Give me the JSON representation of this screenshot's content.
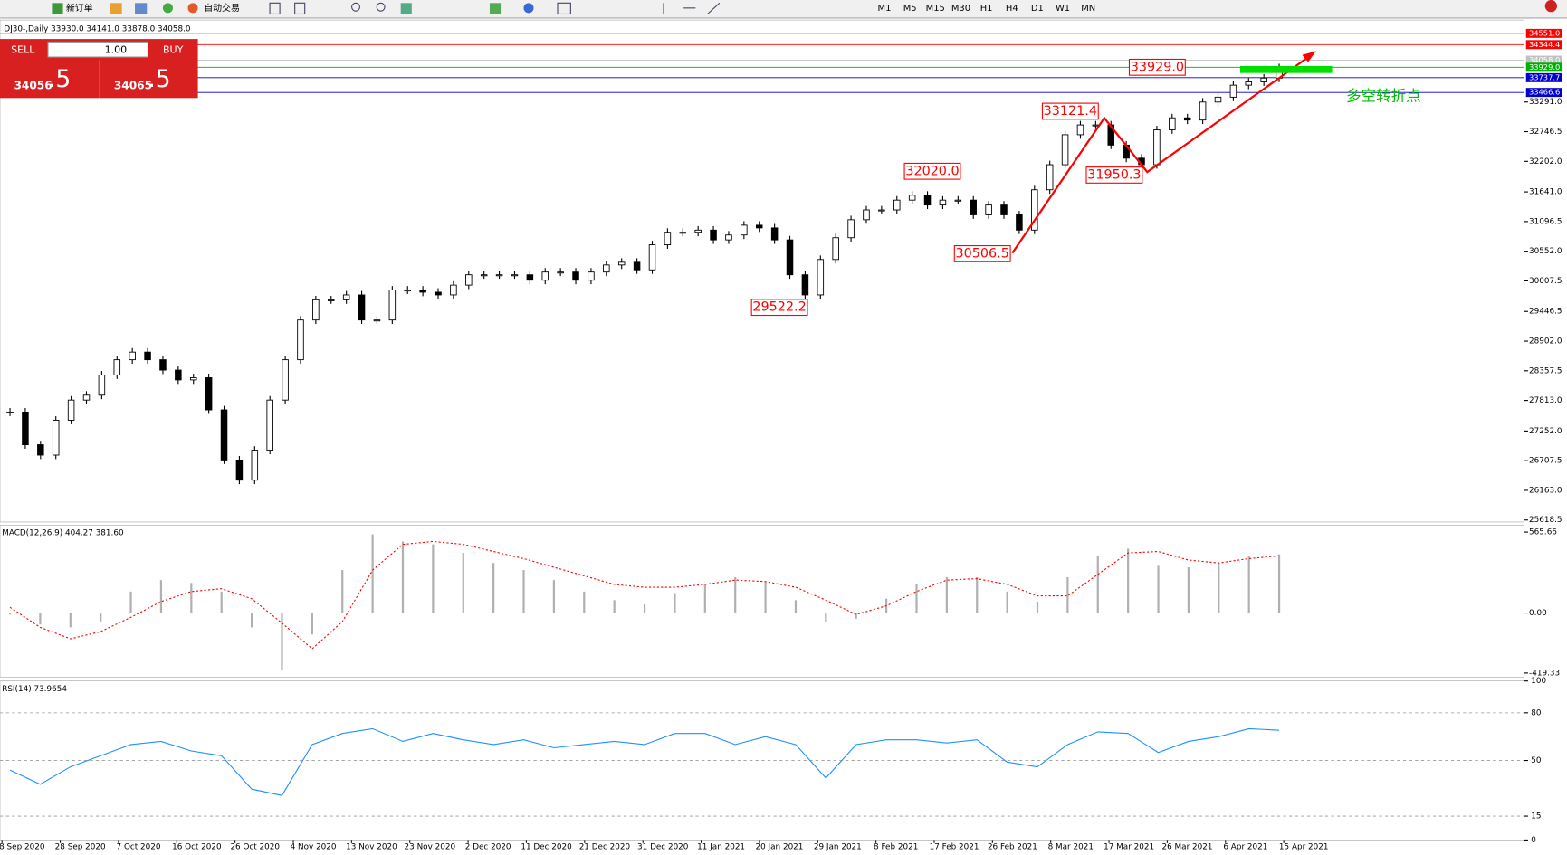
{
  "toolbar": {
    "buttons": [
      "新订单",
      "自动交易"
    ],
    "timeframes": [
      "M1",
      "M5",
      "M15",
      "M30",
      "H1",
      "H4",
      "D1",
      "W1",
      "MN"
    ]
  },
  "trade_panel": {
    "sell": "SELL",
    "lots": "1.00",
    "buy": "BUY",
    "bid_main": "34056",
    "bid_frac": ".5",
    "ask_main": "34065",
    "ask_frac": ".5"
  },
  "note": "多空转折点",
  "chart_data": [
    {
      "type": "candlestick",
      "title": "DJ30-,Daily  33930.0 34141.0 33878.0 34058.0",
      "values": [
        27600,
        27000,
        26810,
        27450,
        27820,
        27910,
        28280,
        28560,
        28700,
        28560,
        28370,
        28190,
        28230,
        27640,
        26720,
        26350,
        26900,
        27820,
        28560,
        29290,
        29660,
        29660,
        29750,
        29290,
        29290,
        29840,
        29840,
        29800,
        29750,
        29930,
        30120,
        30120,
        30120,
        30120,
        30020,
        30170,
        30170,
        30020,
        30170,
        30300,
        30350,
        30210,
        30670,
        30900,
        30900,
        30940,
        30760,
        30850,
        31030,
        30980,
        30760,
        30120,
        29750,
        30400,
        30800,
        31130,
        31310,
        31310,
        31490,
        31580,
        31400,
        31490,
        31490,
        31220,
        31400,
        31220,
        30940,
        31680,
        32140,
        32690,
        32870,
        32870,
        32500,
        32260,
        32140,
        32780,
        33000,
        32960,
        33290,
        33380,
        33600,
        33660,
        33730,
        33920
      ],
      "ylim": [
        25582,
        34796
      ],
      "yticks": [
        {
          "value": 33291,
          "label": "33291.0"
        },
        {
          "value": 32746.5,
          "label": "32746.5"
        },
        {
          "value": 32202,
          "label": "32202.0"
        },
        {
          "value": 31641,
          "label": "31641.0"
        },
        {
          "value": 31096.5,
          "label": "31096.5"
        },
        {
          "value": 30552,
          "label": "30552.0"
        },
        {
          "value": 30007.5,
          "label": "30007.5"
        },
        {
          "value": 29446.5,
          "label": "29446.5"
        },
        {
          "value": 28902,
          "label": "28902.0"
        },
        {
          "value": 28357.5,
          "label": "28357.5"
        },
        {
          "value": 27813,
          "label": "27813.0"
        },
        {
          "value": 27252,
          "label": "27252.0"
        },
        {
          "value": 26707.5,
          "label": "26707.5"
        },
        {
          "value": 26163,
          "label": "26163.0"
        },
        {
          "value": 25618.5,
          "label": "25618.5"
        }
      ],
      "levels": [
        {
          "value": 34551,
          "label": "34551.0",
          "color": "#ff0000"
        },
        {
          "value": 34344.4,
          "label": "34344.4",
          "color": "#ff0000"
        },
        {
          "value": 34058,
          "label": "34058.0",
          "color": "#c0c0c0"
        },
        {
          "value": 33929,
          "label": "33929.0",
          "color": "#00b000"
        },
        {
          "value": 33737.7,
          "label": "33737.7",
          "color": "#0000cc"
        },
        {
          "value": 33466.6,
          "label": "33466.6",
          "color": "#0000cc"
        }
      ],
      "annotations": [
        {
          "value": 33929,
          "label": "33929.0"
        },
        {
          "value": 33121.4,
          "label": "33121.4"
        },
        {
          "value": 32020,
          "label": "32020.0"
        },
        {
          "value": 31950.3,
          "label": "31950.3"
        },
        {
          "value": 30506.5,
          "label": "30506.5"
        },
        {
          "value": 29522.2,
          "label": "29522.2"
        }
      ],
      "date_labels": [
        "8 Sep 2020",
        "28 Sep 2020",
        "7 Oct 2020",
        "16 Oct 2020",
        "26 Oct 2020",
        "4 Nov 2020",
        "13 Nov 2020",
        "23 Nov 2020",
        "2 Dec 2020",
        "11 Dec 2020",
        "21 Dec 2020",
        "31 Dec 2020",
        "11 Jan 2021",
        "20 Jan 2021",
        "29 Jan 2021",
        "8 Feb 2021",
        "17 Feb 2021",
        "26 Feb 2021",
        "8 Mar 2021",
        "17 Mar 2021",
        "26 Mar 2021",
        "6 Apr 2021",
        "15 Apr 2021"
      ]
    },
    {
      "type": "macd",
      "title": "MACD(12,26,9) 404.27 381.60",
      "series": [
        {
          "name": "MACD",
          "color": "#b0b0b0",
          "values": [
            -10,
            -80,
            -100,
            -60,
            150,
            230,
            210,
            150,
            -100,
            -400,
            -150,
            300,
            550,
            500,
            480,
            420,
            350,
            300,
            230,
            150,
            90,
            60,
            140,
            200,
            250,
            220,
            90,
            -60,
            -40,
            100,
            200,
            250,
            250,
            150,
            80,
            250,
            400,
            450,
            330,
            320,
            350,
            400,
            410
          ]
        },
        {
          "name": "Signal",
          "color": "#ff0000",
          "values": [
            40,
            -100,
            -180,
            -130,
            -30,
            80,
            150,
            170,
            100,
            -70,
            -250,
            -60,
            300,
            480,
            500,
            480,
            430,
            380,
            320,
            260,
            200,
            180,
            180,
            200,
            230,
            220,
            180,
            90,
            -10,
            50,
            150,
            230,
            240,
            200,
            120,
            120,
            270,
            420,
            430,
            370,
            350,
            380,
            400
          ]
        }
      ],
      "ylim": [
        -447,
        615
      ],
      "yticks": [
        {
          "value": 565.66,
          "label": "565.66"
        },
        {
          "value": 0,
          "label": "0.00"
        },
        {
          "value": -419.33,
          "label": "-419.33"
        }
      ]
    },
    {
      "type": "rsi",
      "title": "RSI(14) 73.9654",
      "color": "#1e90ff",
      "values": [
        44,
        35,
        46,
        53,
        60,
        62,
        56,
        53,
        32,
        28,
        60,
        67,
        70,
        62,
        67,
        63,
        60,
        63,
        58,
        60,
        62,
        60,
        67,
        67,
        60,
        65,
        60,
        39,
        60,
        63,
        63,
        61,
        63,
        49,
        46,
        60,
        68,
        67,
        55,
        62,
        65,
        70,
        69
      ],
      "ylim": [
        0,
        100
      ],
      "yticks": [
        100,
        80,
        50,
        15,
        0
      ],
      "levels": [
        80,
        50,
        15
      ]
    }
  ]
}
